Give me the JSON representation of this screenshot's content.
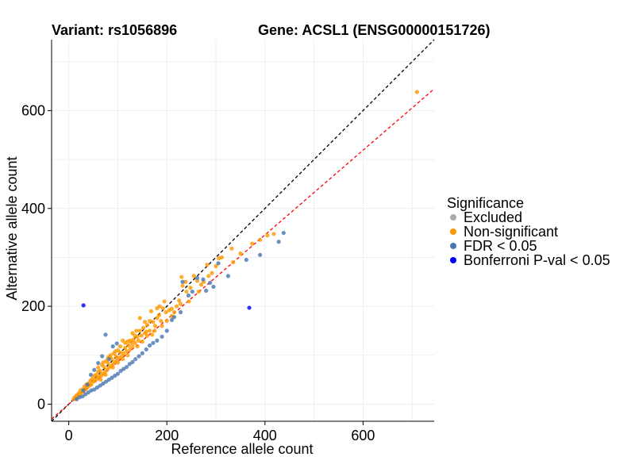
{
  "header": {
    "variant_label": "Variant: rs1056896",
    "gene_label": "Gene: ACSL1 (ENSG00000151726)"
  },
  "legend": {
    "title": "Significance",
    "items": [
      {
        "label": "Excluded",
        "color": "#A9A9A9"
      },
      {
        "label": "Non-significant",
        "color": "#FF9900"
      },
      {
        "label": "FDR < 0.05",
        "color": "#4A77B4"
      },
      {
        "label": "Bonferroni P-val < 0.05",
        "color": "#0000FF"
      }
    ]
  },
  "chart_data": {
    "type": "scatter",
    "xlabel": "Reference allele count",
    "ylabel": "Alternative allele count",
    "xlim": [
      -35,
      745
    ],
    "ylim": [
      -35,
      745
    ],
    "x_ticks": [
      0,
      200,
      400,
      600
    ],
    "y_ticks": [
      0,
      200,
      400,
      600
    ],
    "grid": true,
    "legend_position": "right",
    "reference_lines": [
      {
        "type": "identity",
        "slope": 1,
        "intercept": 0,
        "color": "#000000",
        "style": "dashed"
      },
      {
        "type": "fit",
        "slope": 0.865,
        "intercept": 0,
        "color": "#FF0000",
        "style": "dashed"
      }
    ],
    "series": [
      {
        "name": "Non-significant",
        "color": "#FF9900",
        "points": [
          [
            710,
            638
          ],
          [
            332,
            318
          ],
          [
            306,
            298
          ],
          [
            312,
            300
          ],
          [
            418,
            348
          ],
          [
            405,
            345
          ],
          [
            374,
            328
          ],
          [
            390,
            336
          ],
          [
            335,
            290
          ],
          [
            292,
            268
          ],
          [
            282,
            285
          ],
          [
            270,
            244
          ],
          [
            262,
            252
          ],
          [
            255,
            262
          ],
          [
            248,
            238
          ],
          [
            238,
            250
          ],
          [
            240,
            230
          ],
          [
            232,
            242
          ],
          [
            228,
            205
          ],
          [
            225,
            212
          ],
          [
            220,
            200
          ],
          [
            215,
            188
          ],
          [
            210,
            180
          ],
          [
            205,
            192
          ],
          [
            198,
            188
          ],
          [
            195,
            210
          ],
          [
            192,
            196
          ],
          [
            188,
            170
          ],
          [
            184,
            182
          ],
          [
            180,
            176
          ],
          [
            176,
            160
          ],
          [
            172,
            168
          ],
          [
            168,
            190
          ],
          [
            165,
            150
          ],
          [
            160,
            162
          ],
          [
            158,
            148
          ],
          [
            155,
            145
          ],
          [
            152,
            156
          ],
          [
            148,
            140
          ],
          [
            145,
            176
          ],
          [
            142,
            130
          ],
          [
            140,
            138
          ],
          [
            138,
            150
          ],
          [
            135,
            125
          ],
          [
            132,
            132
          ],
          [
            130,
            118
          ],
          [
            128,
            126
          ],
          [
            125,
            112
          ],
          [
            122,
            120
          ],
          [
            120,
            128
          ],
          [
            118,
            108
          ],
          [
            115,
            115
          ],
          [
            112,
            104
          ],
          [
            110,
            130
          ],
          [
            108,
            98
          ],
          [
            105,
            106
          ],
          [
            102,
            95
          ],
          [
            100,
            110
          ],
          [
            98,
            90
          ],
          [
            96,
            98
          ],
          [
            94,
            86
          ],
          [
            92,
            104
          ],
          [
            90,
            82
          ],
          [
            88,
            92
          ],
          [
            86,
            78
          ],
          [
            84,
            96
          ],
          [
            82,
            75
          ],
          [
            80,
            84
          ],
          [
            78,
            70
          ],
          [
            76,
            88
          ],
          [
            74,
            66
          ],
          [
            72,
            76
          ],
          [
            70,
            62
          ],
          [
            68,
            80
          ],
          [
            66,
            58
          ],
          [
            64,
            68
          ],
          [
            62,
            56
          ],
          [
            60,
            66
          ],
          [
            58,
            52
          ],
          [
            56,
            60
          ],
          [
            54,
            48
          ],
          [
            52,
            58
          ],
          [
            50,
            46
          ],
          [
            48,
            52
          ],
          [
            46,
            40
          ],
          [
            44,
            48
          ],
          [
            42,
            38
          ],
          [
            40,
            42
          ],
          [
            38,
            34
          ],
          [
            36,
            40
          ],
          [
            34,
            30
          ],
          [
            32,
            36
          ],
          [
            30,
            26
          ],
          [
            28,
            30
          ],
          [
            26,
            24
          ],
          [
            24,
            28
          ],
          [
            22,
            20
          ],
          [
            20,
            22
          ],
          [
            18,
            16
          ],
          [
            16,
            18
          ],
          [
            14,
            12
          ],
          [
            12,
            14
          ],
          [
            10,
            10
          ],
          [
            180,
            196
          ],
          [
            175,
            150
          ],
          [
            170,
            142
          ],
          [
            165,
            170
          ],
          [
            160,
            140
          ],
          [
            155,
            168
          ],
          [
            150,
            128
          ],
          [
            145,
            150
          ],
          [
            140,
            118
          ],
          [
            135,
            140
          ],
          [
            130,
            145
          ],
          [
            125,
            130
          ],
          [
            120,
            100
          ],
          [
            115,
            125
          ],
          [
            110,
            92
          ],
          [
            105,
            118
          ],
          [
            100,
            85
          ],
          [
            95,
            108
          ],
          [
            90,
            75
          ],
          [
            85,
            100
          ],
          [
            80,
            95
          ],
          [
            75,
            60
          ],
          [
            70,
            85
          ],
          [
            65,
            50
          ],
          [
            60,
            75
          ],
          [
            200,
            170
          ],
          [
            210,
            195
          ],
          [
            190,
            160
          ],
          [
            185,
            200
          ],
          [
            245,
            210
          ],
          [
            230,
            260
          ],
          [
            265,
            230
          ],
          [
            275,
            250
          ],
          [
            285,
            262
          ],
          [
            300,
            282
          ],
          [
            350,
            308
          ]
        ]
      },
      {
        "name": "FDR < 0.05",
        "color": "#4A77B4",
        "points": [
          [
            438,
            350
          ],
          [
            428,
            332
          ],
          [
            390,
            305
          ],
          [
            362,
            295
          ],
          [
            325,
            262
          ],
          [
            305,
            288
          ],
          [
            295,
            240
          ],
          [
            288,
            248
          ],
          [
            280,
            232
          ],
          [
            274,
            255
          ],
          [
            262,
            258
          ],
          [
            252,
            230
          ],
          [
            244,
            222
          ],
          [
            232,
            250
          ],
          [
            228,
            188
          ],
          [
            215,
            178
          ],
          [
            210,
            172
          ],
          [
            200,
            150
          ],
          [
            190,
            138
          ],
          [
            180,
            130
          ],
          [
            172,
            125
          ],
          [
            165,
            120
          ],
          [
            158,
            112
          ],
          [
            150,
            104
          ],
          [
            143,
            98
          ],
          [
            136,
            92
          ],
          [
            130,
            86
          ],
          [
            124,
            82
          ],
          [
            118,
            76
          ],
          [
            112,
            72
          ],
          [
            106,
            68
          ],
          [
            100,
            62
          ],
          [
            94,
            58
          ],
          [
            88,
            54
          ],
          [
            82,
            50
          ],
          [
            76,
            46
          ],
          [
            70,
            42
          ],
          [
            64,
            38
          ],
          [
            58,
            34
          ],
          [
            52,
            30
          ],
          [
            46,
            28
          ],
          [
            40,
            24
          ],
          [
            34,
            20
          ],
          [
            28,
            16
          ],
          [
            22,
            14
          ],
          [
            16,
            10
          ],
          [
            30,
            28
          ],
          [
            38,
            40
          ],
          [
            45,
            60
          ],
          [
            52,
            70
          ],
          [
            60,
            84
          ],
          [
            68,
            98
          ],
          [
            75,
            142
          ],
          [
            82,
            92
          ],
          [
            90,
            118
          ],
          [
            98,
            124
          ]
        ]
      },
      {
        "name": "Bonferroni P-val < 0.05",
        "color": "#0000FF",
        "points": [
          [
            30,
            202
          ],
          [
            368,
            197
          ]
        ]
      }
    ]
  }
}
